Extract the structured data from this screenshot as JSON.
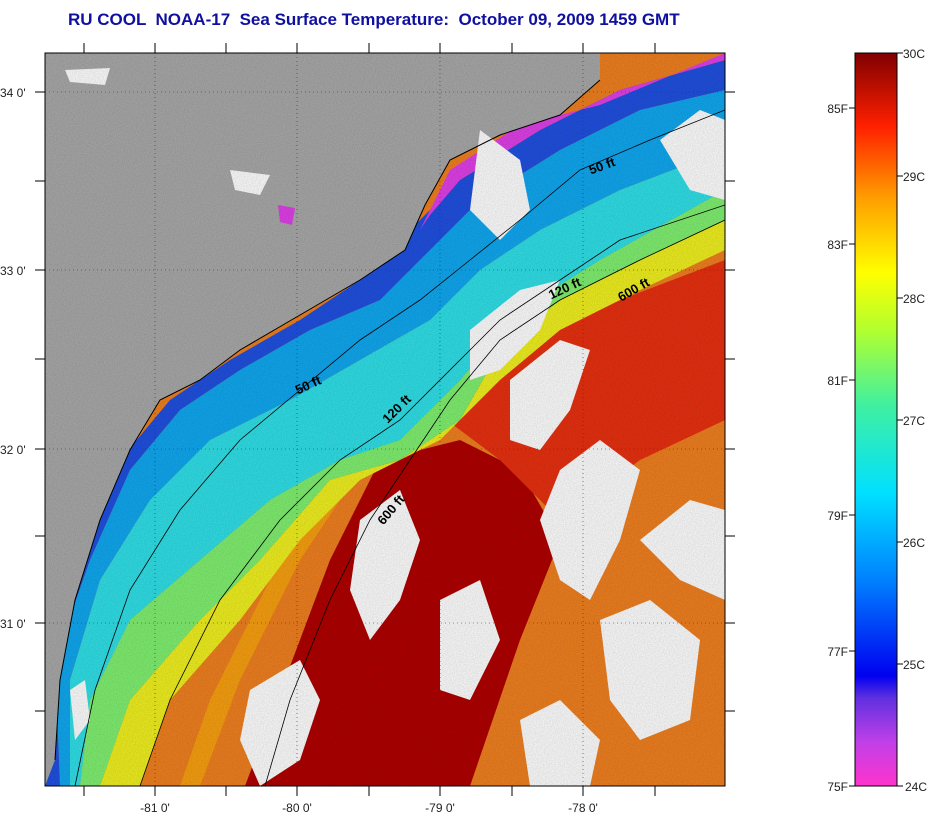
{
  "title": "RU COOL  NOAA-17  Sea Surface Temperature:  October 09, 2009 1459 GMT",
  "map": {
    "lat_ticks": [
      "34 0'",
      "33 0'",
      "32 0'",
      "31 0'"
    ],
    "lon_ticks": [
      "-81 0'",
      "-80 0'",
      "-79 0'",
      "-78 0'"
    ],
    "contours": [
      {
        "label": "50 ft"
      },
      {
        "label": "120 ft"
      },
      {
        "label": "600 ft"
      },
      {
        "label": "50 ft"
      },
      {
        "label": "120 ft"
      },
      {
        "label": "600 ft"
      }
    ],
    "colors": {
      "land": "#a9a9a9",
      "cloud": "#ffffff",
      "coast": "#000000",
      "title": "#1010a0"
    }
  },
  "colorbar": {
    "celsius_labels": [
      "30C",
      "29C",
      "28C",
      "27C",
      "26C",
      "25C",
      "24C"
    ],
    "fahrenheit_labels": [
      "85F",
      "83F",
      "81F",
      "79F",
      "77F",
      "75F"
    ],
    "range_c": [
      24,
      30
    ],
    "range_f": [
      75,
      86
    ]
  }
}
